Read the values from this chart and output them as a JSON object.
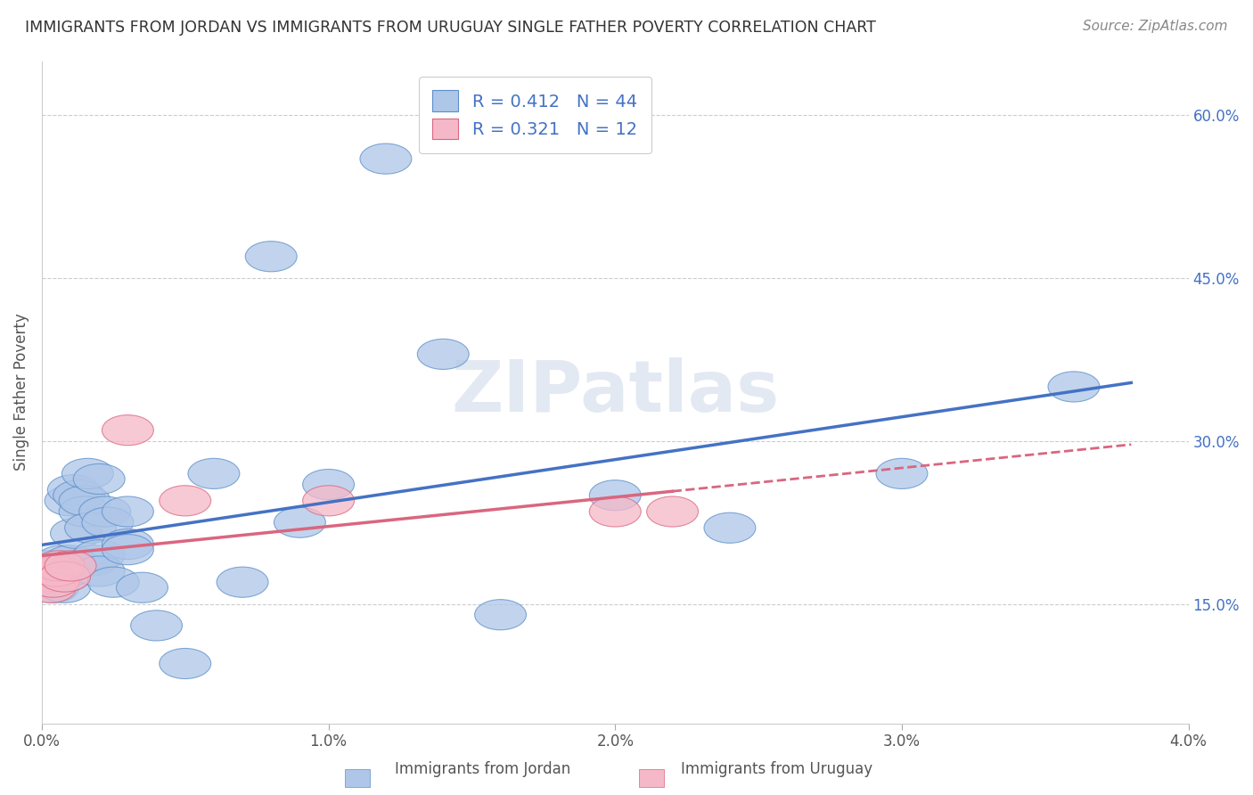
{
  "title": "IMMIGRANTS FROM JORDAN VS IMMIGRANTS FROM URUGUAY SINGLE FATHER POVERTY CORRELATION CHART",
  "source": "Source: ZipAtlas.com",
  "ylabel": "Single Father Poverty",
  "xlim": [
    0.0,
    0.04
  ],
  "ylim": [
    0.04,
    0.65
  ],
  "right_yticks": [
    0.15,
    0.3,
    0.45,
    0.6
  ],
  "right_yticklabels": [
    "15.0%",
    "30.0%",
    "45.0%",
    "60.0%"
  ],
  "xticks": [
    0.0,
    0.01,
    0.02,
    0.03,
    0.04
  ],
  "xticklabels": [
    "0.0%",
    "1.0%",
    "2.0%",
    "3.0%",
    "4.0%"
  ],
  "jordan_R": 0.412,
  "jordan_N": 44,
  "uruguay_R": 0.321,
  "uruguay_N": 12,
  "jordan_color": "#aec6e8",
  "jordan_edge_color": "#5b8fc9",
  "jordan_line_color": "#4472c4",
  "uruguay_color": "#f5b8c8",
  "uruguay_edge_color": "#d9667f",
  "uruguay_line_color": "#d9667f",
  "legend_color": "#4472c4",
  "watermark": "ZIPatlas",
  "jordan_x": [
    0.0002,
    0.0003,
    0.0004,
    0.0005,
    0.0005,
    0.0006,
    0.0007,
    0.0008,
    0.0008,
    0.0009,
    0.001,
    0.001,
    0.0011,
    0.0012,
    0.0013,
    0.0015,
    0.0015,
    0.0016,
    0.0017,
    0.0018,
    0.002,
    0.002,
    0.002,
    0.0022,
    0.0023,
    0.0025,
    0.003,
    0.003,
    0.003,
    0.0035,
    0.004,
    0.005,
    0.006,
    0.007,
    0.008,
    0.009,
    0.01,
    0.012,
    0.014,
    0.016,
    0.02,
    0.024,
    0.03,
    0.036
  ],
  "jordan_y": [
    0.185,
    0.175,
    0.165,
    0.18,
    0.175,
    0.185,
    0.19,
    0.165,
    0.175,
    0.18,
    0.19,
    0.245,
    0.255,
    0.215,
    0.25,
    0.235,
    0.245,
    0.27,
    0.22,
    0.19,
    0.265,
    0.195,
    0.18,
    0.235,
    0.225,
    0.17,
    0.205,
    0.2,
    0.235,
    0.165,
    0.13,
    0.095,
    0.27,
    0.17,
    0.47,
    0.225,
    0.26,
    0.56,
    0.38,
    0.14,
    0.25,
    0.22,
    0.27,
    0.35
  ],
  "uruguay_x": [
    0.0002,
    0.0003,
    0.0004,
    0.0005,
    0.0006,
    0.0008,
    0.001,
    0.003,
    0.005,
    0.01,
    0.02,
    0.022
  ],
  "uruguay_y": [
    0.175,
    0.165,
    0.17,
    0.18,
    0.185,
    0.175,
    0.185,
    0.31,
    0.245,
    0.245,
    0.235,
    0.235
  ],
  "background_color": "#ffffff",
  "grid_color": "#cccccc"
}
